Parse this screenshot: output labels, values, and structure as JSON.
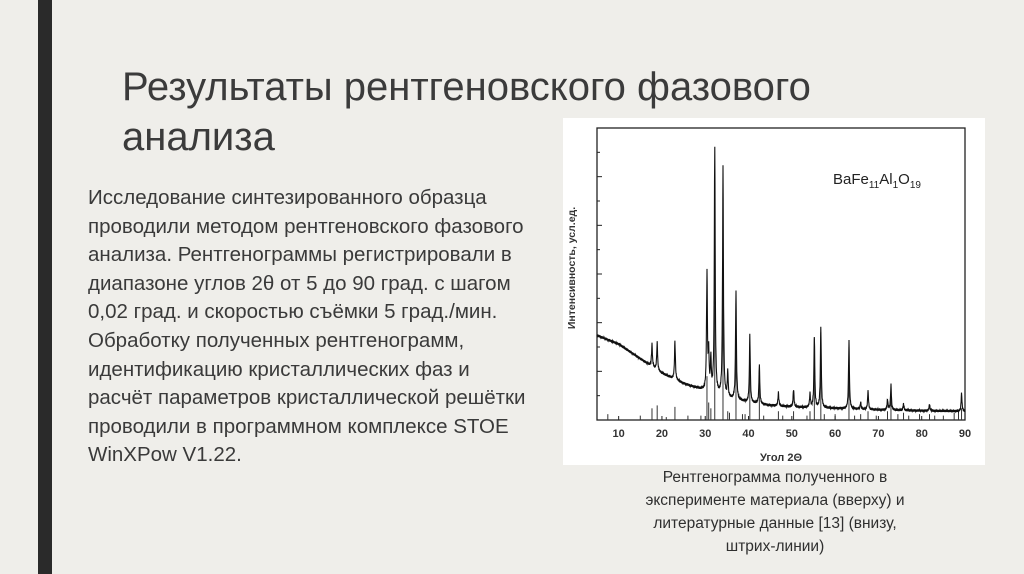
{
  "slide": {
    "title": "Результаты рентгеновского фазового анализа",
    "body": "Исследование синтезированного образца проводили методом рентгеновского фазового анализа. Рентгенограммы регистрировали в диапазоне углов 2θ от 5 до 90 град. с шагом 0,02 град. и скоростью съёмки 5 град./мин. Обработку полученных рентгенограмм, идентификацию кристаллических фаз и расчёт параметров кристаллической решётки проводили в программном комплексе STOE WinXPow V1.22.",
    "caption": "Рентгенограмма полученного в эксперименте материала (вверху) и литературные данные [13] (внизу, штрих-линии)",
    "colors": {
      "background": "#efeeea",
      "accent_bar": "#2a2a2a",
      "text": "#3a3a3a"
    }
  },
  "chart_data": {
    "type": "line",
    "title": "",
    "annotation": {
      "formula": "BaFe",
      "sub1": "11",
      "el2": "Al",
      "sub2": "1",
      "el3": "O",
      "sub3": "19"
    },
    "xlabel": "Угол 2Θ",
    "ylabel": "Интенсивность, усл.ед.",
    "xlim": [
      5,
      90
    ],
    "ylim": [
      0,
      100
    ],
    "xticks": [
      10,
      20,
      30,
      40,
      50,
      60,
      70,
      80,
      90
    ],
    "grid": false,
    "background_curve": [
      [
        5,
        29
      ],
      [
        10,
        26
      ],
      [
        15,
        21
      ],
      [
        20,
        16
      ],
      [
        25,
        12.5
      ],
      [
        30,
        10
      ],
      [
        35,
        7.5
      ],
      [
        40,
        6
      ],
      [
        45,
        5
      ],
      [
        50,
        4.5
      ],
      [
        60,
        4
      ],
      [
        70,
        3.5
      ],
      [
        80,
        3.2
      ],
      [
        90,
        3
      ]
    ],
    "peaks": [
      [
        17.7,
        26
      ],
      [
        18.9,
        26.5
      ],
      [
        23.0,
        27
      ],
      [
        30.4,
        50
      ],
      [
        30.8,
        22
      ],
      [
        31.3,
        20
      ],
      [
        32.2,
        93
      ],
      [
        34.1,
        87
      ],
      [
        35.2,
        16
      ],
      [
        37.1,
        44
      ],
      [
        40.3,
        29
      ],
      [
        42.5,
        18.5
      ],
      [
        46.9,
        9.4
      ],
      [
        50.4,
        10.5
      ],
      [
        54.2,
        9
      ],
      [
        55.2,
        28
      ],
      [
        56.7,
        32
      ],
      [
        63.2,
        27
      ],
      [
        65.9,
        6
      ],
      [
        67.6,
        10
      ],
      [
        72.1,
        7
      ],
      [
        72.9,
        12
      ],
      [
        75.8,
        5.5
      ],
      [
        81.8,
        5.5
      ],
      [
        89.2,
        9
      ]
    ],
    "reference_lines": [
      [
        7.5,
        2
      ],
      [
        15.0,
        1.5
      ],
      [
        17.7,
        4
      ],
      [
        18.9,
        5
      ],
      [
        21.0,
        1
      ],
      [
        23.0,
        4.5
      ],
      [
        26.0,
        1.5
      ],
      [
        29.0,
        1.5
      ],
      [
        30.4,
        15
      ],
      [
        30.8,
        6
      ],
      [
        31.3,
        4
      ],
      [
        32.2,
        60
      ],
      [
        34.1,
        55
      ],
      [
        35.2,
        3
      ],
      [
        35.6,
        2.5
      ],
      [
        37.1,
        40
      ],
      [
        38.6,
        2
      ],
      [
        39.2,
        2
      ],
      [
        40.3,
        25
      ],
      [
        42.5,
        15
      ],
      [
        43.5,
        1.5
      ],
      [
        46.9,
        3
      ],
      [
        47.9,
        1.5
      ],
      [
        50.4,
        3
      ],
      [
        53.5,
        1.5
      ],
      [
        54.2,
        3
      ],
      [
        55.2,
        28
      ],
      [
        56.7,
        30
      ],
      [
        57.5,
        2
      ],
      [
        60.0,
        2
      ],
      [
        63.2,
        25
      ],
      [
        64.5,
        1.5
      ],
      [
        65.9,
        2
      ],
      [
        67.6,
        3
      ],
      [
        69.5,
        1.5
      ],
      [
        72.1,
        3
      ],
      [
        72.9,
        10
      ],
      [
        74.5,
        2
      ],
      [
        75.8,
        2.5
      ],
      [
        77.0,
        1.5
      ],
      [
        79.5,
        2
      ],
      [
        81.8,
        2
      ],
      [
        83.0,
        1.5
      ],
      [
        85.0,
        1.5
      ],
      [
        87.5,
        2.5
      ],
      [
        88.5,
        3
      ],
      [
        89.2,
        4
      ]
    ]
  }
}
